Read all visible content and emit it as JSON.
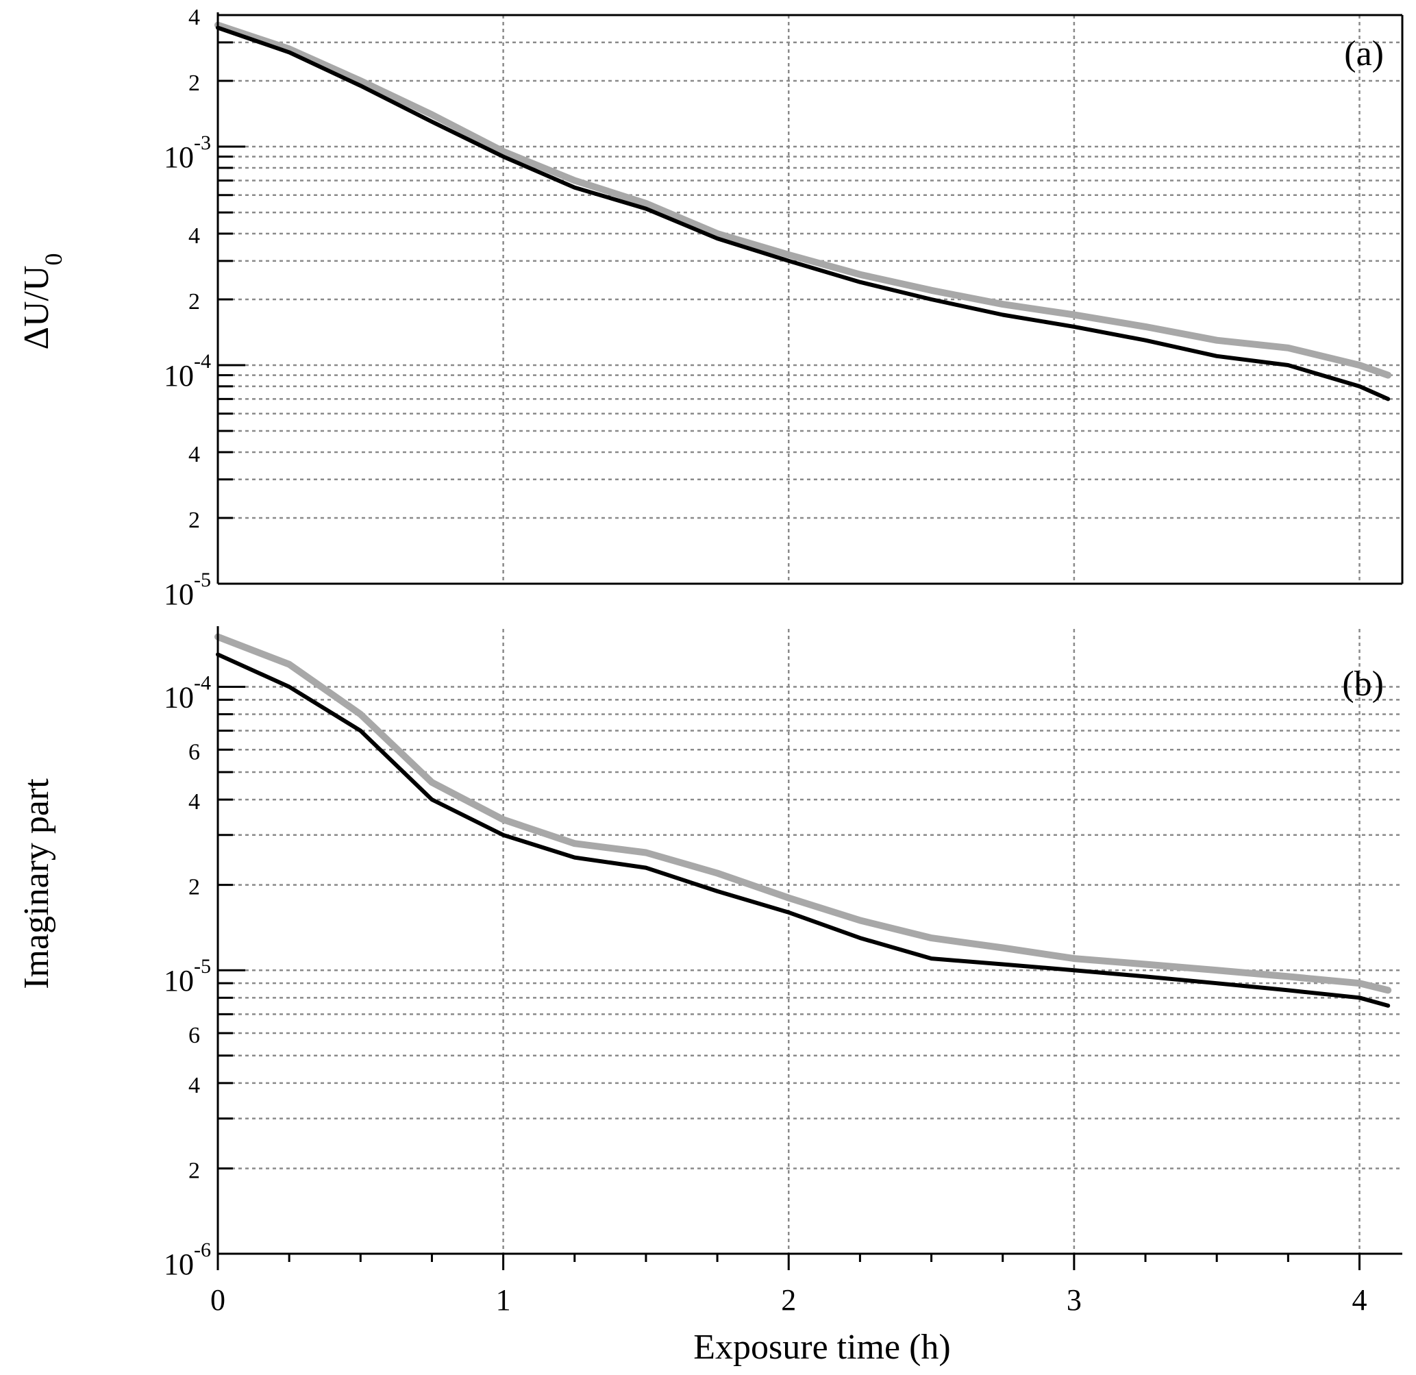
{
  "chart_data": [
    {
      "panel": "a",
      "type": "line",
      "panel_label": "(a)",
      "ylabel": "ΔU/U",
      "ylabel_sub": "0",
      "yscale": "log",
      "ylim": [
        1e-05,
        0.004
      ],
      "xlim": [
        0,
        4.15
      ],
      "grid": true,
      "y_major_ticks": [
        {
          "value": 0.001,
          "mantissa": "10",
          "exponent": "-3"
        },
        {
          "value": 0.0001,
          "mantissa": "10",
          "exponent": "-4"
        },
        {
          "value": 1e-05,
          "mantissa": "10",
          "exponent": "-5"
        }
      ],
      "y_minor_labels": [
        {
          "value": 0.004,
          "label": "4"
        },
        {
          "value": 0.002,
          "label": "2"
        },
        {
          "value": 0.0004,
          "label": "4"
        },
        {
          "value": 0.0002,
          "label": "2"
        },
        {
          "value": 4e-05,
          "label": "4"
        },
        {
          "value": 2e-05,
          "label": "2"
        }
      ],
      "series": [
        {
          "role": "mean",
          "color": "#000000",
          "x": [
            0,
            0.25,
            0.5,
            0.75,
            1.0,
            1.25,
            1.5,
            1.75,
            2.0,
            2.25,
            2.5,
            2.75,
            3.0,
            3.25,
            3.5,
            3.75,
            4.0,
            4.1
          ],
          "y": [
            0.0035,
            0.0027,
            0.0019,
            0.0013,
            0.0009,
            0.00065,
            0.00052,
            0.00038,
            0.0003,
            0.00024,
            0.0002,
            0.00017,
            0.00015,
            0.00013,
            0.00011,
            0.0001,
            8e-05,
            7e-05
          ]
        },
        {
          "role": "spread",
          "color": "#a8a8a8",
          "x": [
            0,
            0.25,
            0.5,
            0.75,
            1.0,
            1.25,
            1.5,
            1.75,
            2.0,
            2.25,
            2.5,
            2.75,
            3.0,
            3.25,
            3.5,
            3.75,
            4.0,
            4.1
          ],
          "y": [
            0.0036,
            0.0028,
            0.002,
            0.0014,
            0.00095,
            0.0007,
            0.00055,
            0.0004,
            0.00032,
            0.00026,
            0.00022,
            0.00019,
            0.00017,
            0.00015,
            0.00013,
            0.00012,
            0.0001,
            9e-05
          ]
        }
      ]
    },
    {
      "panel": "b",
      "type": "line",
      "panel_label": "(b)",
      "ylabel": "Imaginary part",
      "yscale": "log",
      "ylim": [
        1e-06,
        0.00016
      ],
      "xlim": [
        0,
        4.15
      ],
      "grid": true,
      "y_major_ticks": [
        {
          "value": 0.0001,
          "mantissa": "10",
          "exponent": "-4"
        },
        {
          "value": 1e-05,
          "mantissa": "10",
          "exponent": "-5"
        },
        {
          "value": 1e-06,
          "mantissa": "10",
          "exponent": "-6"
        }
      ],
      "y_minor_labels": [
        {
          "value": 6e-05,
          "label": "6"
        },
        {
          "value": 4e-05,
          "label": "4"
        },
        {
          "value": 2e-05,
          "label": "2"
        },
        {
          "value": 6e-06,
          "label": "6"
        },
        {
          "value": 4e-06,
          "label": "4"
        },
        {
          "value": 2e-06,
          "label": "2"
        }
      ],
      "series": [
        {
          "role": "mean",
          "color": "#000000",
          "x": [
            0,
            0.25,
            0.5,
            0.75,
            1.0,
            1.25,
            1.5,
            1.75,
            2.0,
            2.25,
            2.5,
            2.75,
            3.0,
            3.25,
            3.5,
            3.75,
            4.0,
            4.1
          ],
          "y": [
            0.00013,
            0.0001,
            7e-05,
            4e-05,
            3e-05,
            2.5e-05,
            2.3e-05,
            1.9e-05,
            1.6e-05,
            1.3e-05,
            1.1e-05,
            1.05e-05,
            1e-05,
            9.5e-06,
            9e-06,
            8.5e-06,
            8e-06,
            7.5e-06
          ]
        },
        {
          "role": "spread",
          "color": "#a8a8a8",
          "x": [
            0,
            0.25,
            0.5,
            0.75,
            1.0,
            1.25,
            1.5,
            1.75,
            2.0,
            2.25,
            2.5,
            2.75,
            3.0,
            3.25,
            3.5,
            3.75,
            4.0,
            4.1
          ],
          "y": [
            0.00015,
            0.00012,
            8e-05,
            4.6e-05,
            3.4e-05,
            2.8e-05,
            2.6e-05,
            2.2e-05,
            1.8e-05,
            1.5e-05,
            1.3e-05,
            1.2e-05,
            1.1e-05,
            1.05e-05,
            1e-05,
            9.5e-06,
            9e-06,
            8.5e-06
          ]
        }
      ]
    }
  ],
  "x_axis": {
    "xlabel": "Exposure time (h)",
    "ticks": [
      {
        "value": 0,
        "label": "0"
      },
      {
        "value": 1,
        "label": "1"
      },
      {
        "value": 2,
        "label": "2"
      },
      {
        "value": 3,
        "label": "3"
      },
      {
        "value": 4,
        "label": "4"
      }
    ]
  }
}
